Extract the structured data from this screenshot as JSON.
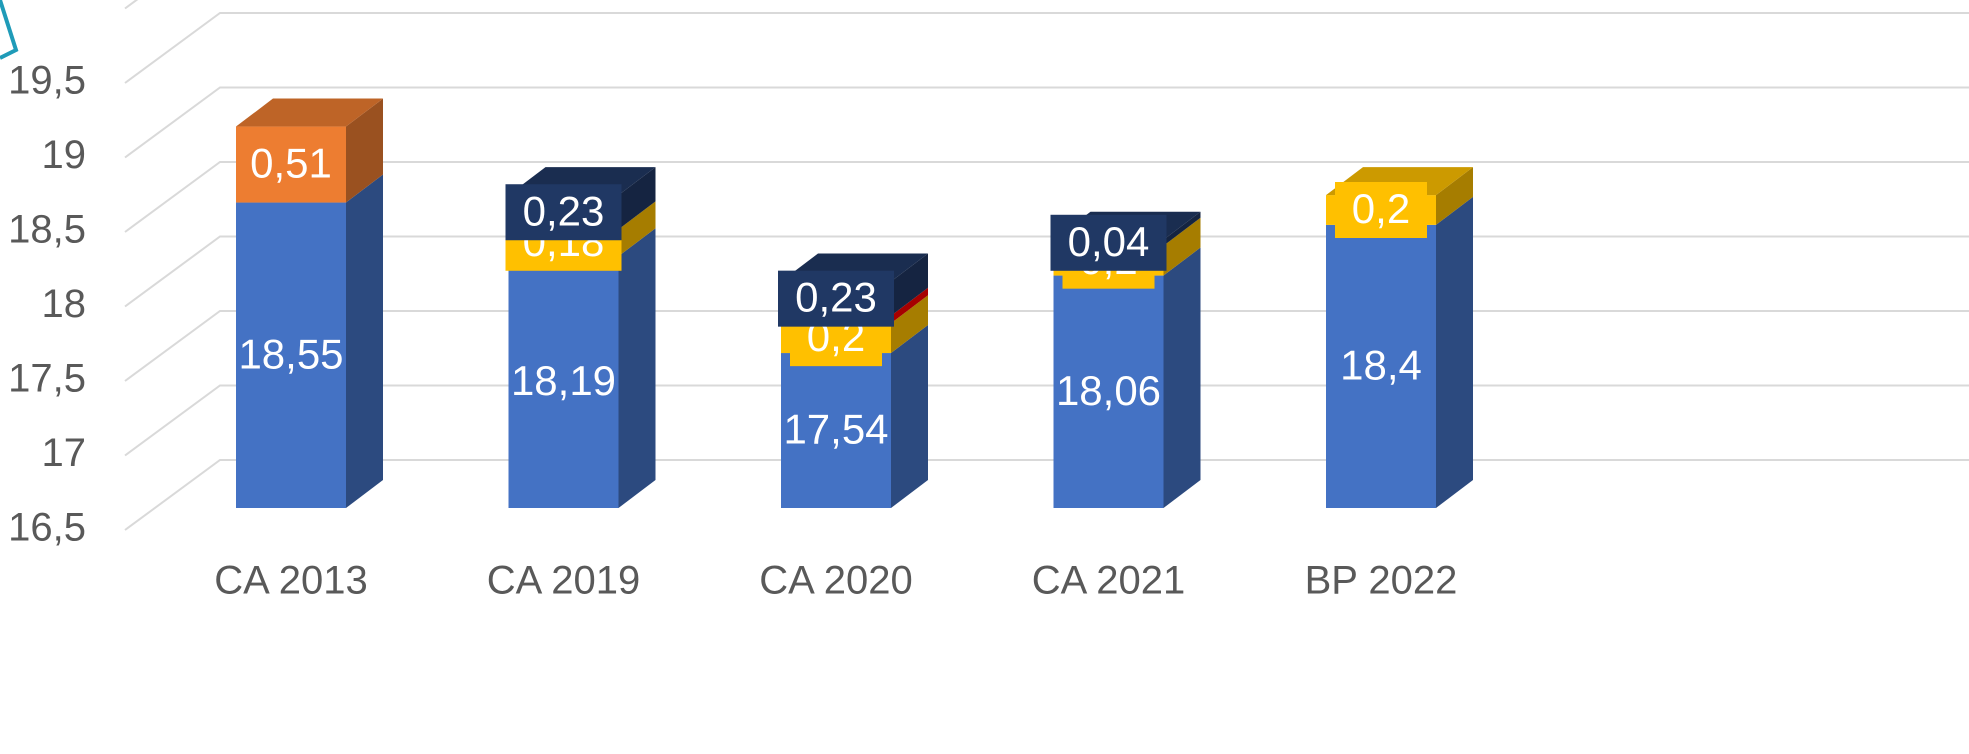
{
  "chart_data": {
    "type": "bar3d_stacked",
    "categories": [
      "CA 2013",
      "CA 2019",
      "CA 2020",
      "CA 2021",
      "BP 2022"
    ],
    "series": [
      {
        "color": "#4472c4",
        "values": [
          18.55,
          18.19,
          17.54,
          18.06,
          18.4
        ],
        "value_labels": [
          "18,55",
          "18,19",
          "17,54",
          "18,06",
          "18,4"
        ]
      },
      {
        "color": "#ed7d31",
        "values": [
          0.51,
          null,
          null,
          null,
          null
        ],
        "value_labels": [
          "0,51",
          null,
          null,
          null,
          null
        ]
      },
      {
        "color": "#ffc000",
        "values": [
          null,
          0.18,
          0.2,
          0.2,
          0.2
        ],
        "value_labels": [
          null,
          "0,18",
          "0,2",
          "0,2",
          "0,2"
        ]
      },
      {
        "color": "#ff0000",
        "values": [
          null,
          null,
          0.05,
          null,
          null
        ]
      },
      {
        "color": "#203864",
        "values": [
          null,
          0.23,
          0.23,
          0.04,
          null
        ],
        "value_labels": [
          null,
          "0,23",
          "0,23",
          "0,04",
          null
        ]
      }
    ],
    "ylim": [
      16.5,
      20
    ],
    "yticks": [
      {
        "value": 16.5,
        "label": "16,5"
      },
      17,
      {
        "value": 17.5,
        "label": "17,5"
      },
      18,
      {
        "value": 18.5,
        "label": "18,5"
      },
      19,
      {
        "value": 19.5,
        "label": "19,5"
      }
    ],
    "grid": true
  }
}
